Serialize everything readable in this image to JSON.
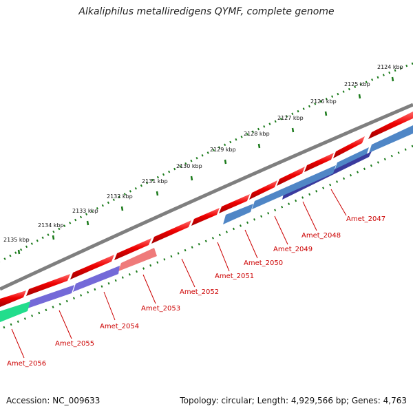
{
  "title": "Alkaliphilus metalliredigens QYMF, complete genome",
  "footer": {
    "accession": "Accession: NC_009633",
    "stats": "Topology: circular; Length: 4,929,566 bp; Genes: 4,763"
  },
  "colors": {
    "backbone": "#7f7f7f",
    "cds_forward": "#ee0000",
    "cds_reverse_light": "#ef7a7a",
    "blue_track": "#4f86c6",
    "dark_blue_track": "#3a3a9e",
    "purple_track": "#7469d8",
    "green_track": "#22dd8c",
    "ruler": "#1a7a1a",
    "label": "#cc0000"
  },
  "ruler_ticks_kbp": [
    "2124 kbp",
    "2125 kbp",
    "2126 kbp",
    "2127 kbp",
    "2128 kbp",
    "2129 kbp",
    "2130 kbp",
    "2131 kbp",
    "2132 kbp",
    "2133 kbp",
    "2134 kbp",
    "2135 kbp"
  ],
  "gene_labels": [
    "Amet_2047",
    "Amet_2048",
    "Amet_2049",
    "Amet_2050",
    "Amet_2051",
    "Amet_2052",
    "Amet_2053",
    "Amet_2054",
    "Amet_2055",
    "Amet_2056"
  ]
}
